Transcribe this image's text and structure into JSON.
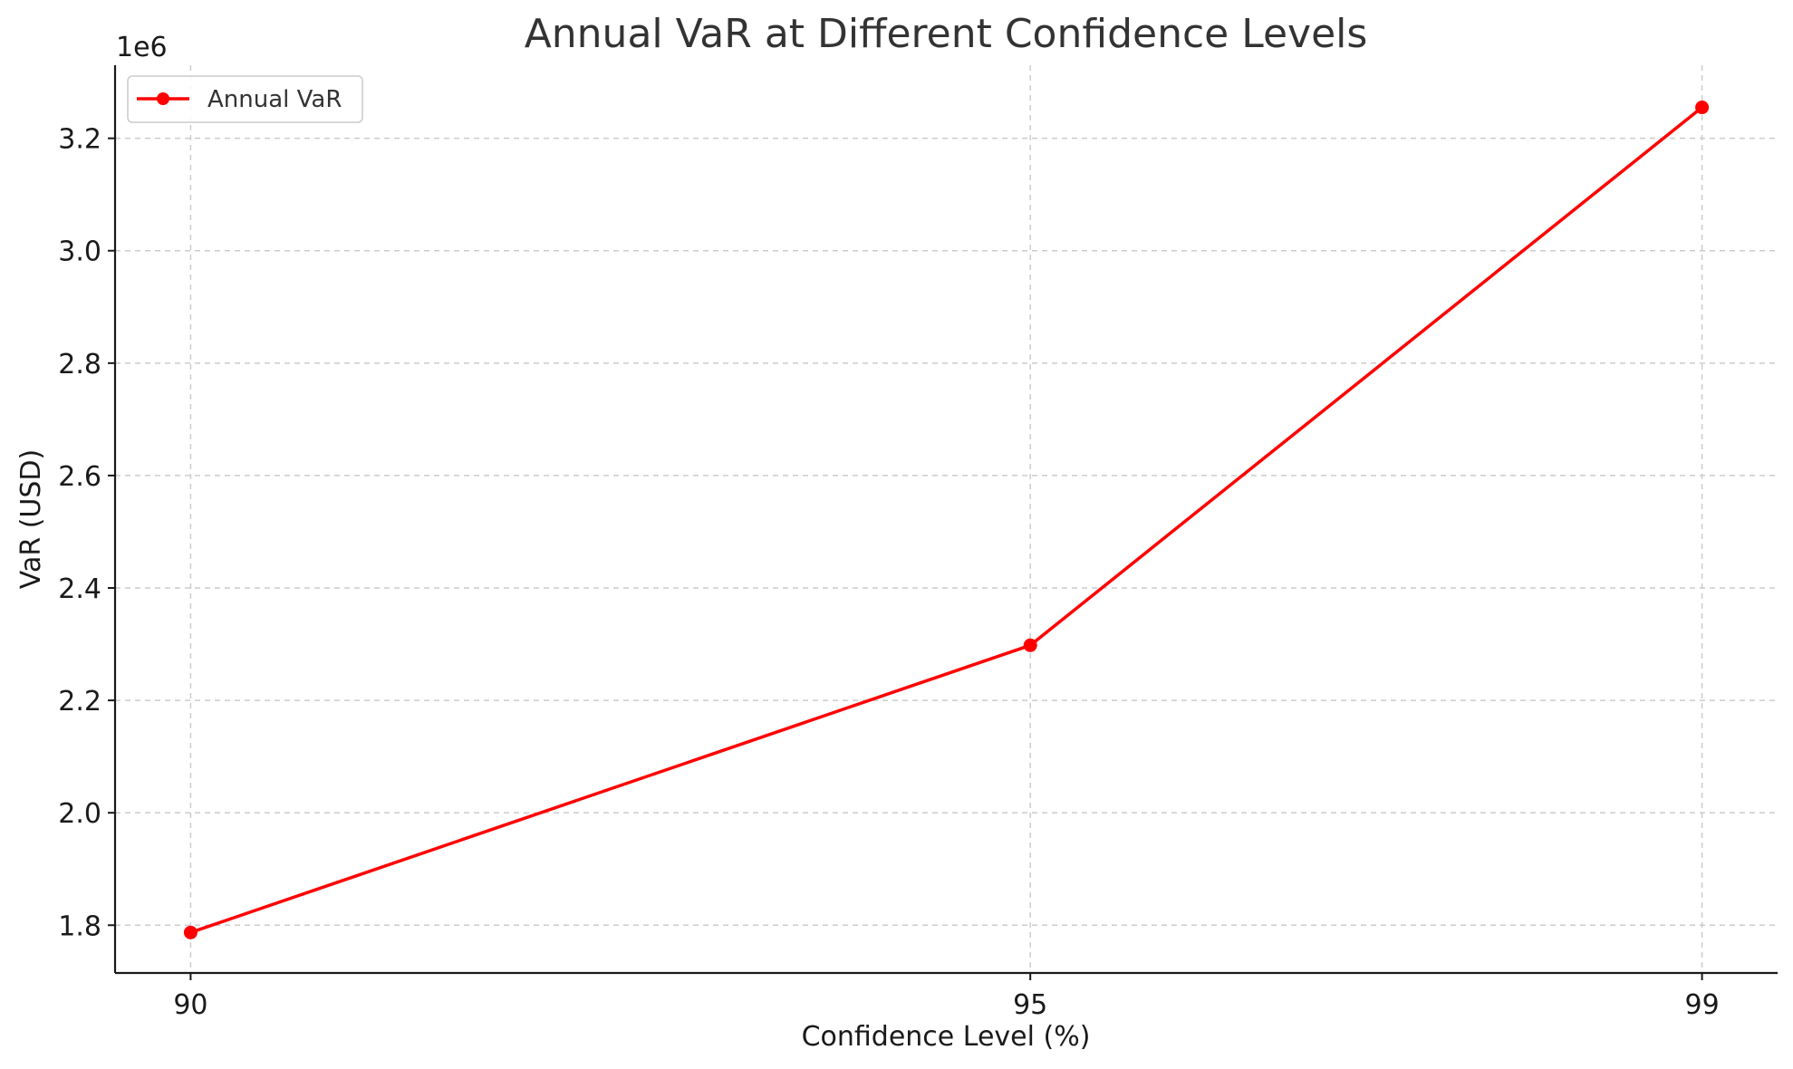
{
  "chart_data": {
    "type": "line",
    "title": "Annual VaR at Different Confidence Levels",
    "xlabel": "Confidence Level (%)",
    "ylabel": "VaR (USD)",
    "y_offset_label": "1e6",
    "x": [
      90,
      95,
      99
    ],
    "x_tick_labels": [
      "90",
      "95",
      "99"
    ],
    "series": [
      {
        "name": "Annual VaR",
        "color": "#ff0000",
        "marker": "circle",
        "values": [
          1787000,
          2298000,
          3255000
        ]
      }
    ],
    "xlim": [
      89.55,
      99.45
    ],
    "ylim": [
      1715000,
      3330000
    ],
    "y_ticks": [
      1800000,
      2000000,
      2200000,
      2400000,
      2600000,
      2800000,
      3000000,
      3200000
    ],
    "y_tick_labels": [
      "1.8",
      "2.0",
      "2.2",
      "2.4",
      "2.6",
      "2.8",
      "3.0",
      "3.2"
    ],
    "grid": true,
    "legend_position": "top-left"
  }
}
